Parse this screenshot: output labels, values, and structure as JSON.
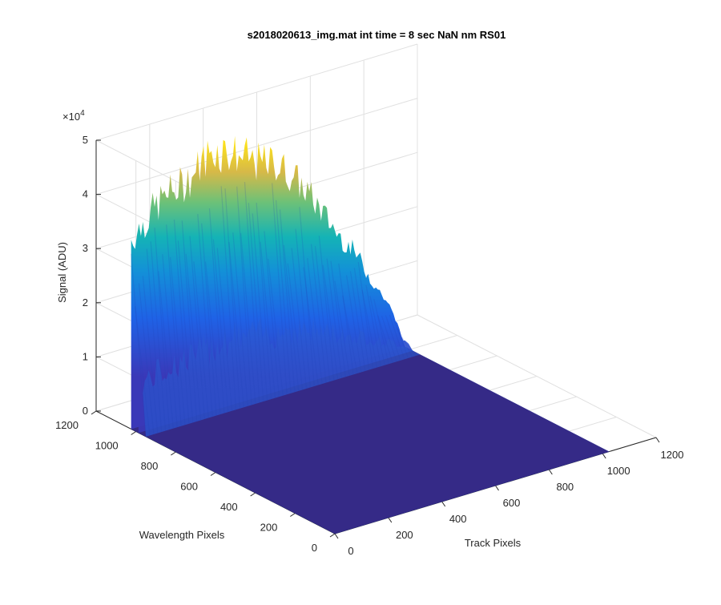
{
  "chart_data": {
    "type": "surface",
    "title": "s2018020613_img.mat int time = 8 sec  NaN nm RS01",
    "xlabel": "Track Pixels",
    "ylabel": "Wavelength Pixels",
    "zlabel": "Signal (ADU)",
    "xlim": [
      0,
      1200
    ],
    "ylim": [
      0,
      1200
    ],
    "zlim": [
      0,
      50000
    ],
    "x_ticks": [
      "0",
      "200",
      "400",
      "600",
      "800",
      "1000",
      "1200"
    ],
    "y_ticks": [
      "0",
      "200",
      "400",
      "600",
      "800",
      "1000",
      "1200"
    ],
    "z_ticks": [
      "0",
      "1",
      "2",
      "3",
      "4",
      "5"
    ],
    "z_exponent_base": "×10",
    "z_exponent_power": "4",
    "grid": true,
    "colormap": "parula",
    "data_extent": {
      "x_range": [
        0,
        1024
      ],
      "y_range": [
        0,
        1024
      ],
      "signal_x_range": [
        0,
        1024
      ],
      "signal_y_range": [
        950,
        1024
      ],
      "baseline_signal": 0,
      "peak_signal": 47000
    },
    "profile_along_track": {
      "x": [
        0,
        60,
        120,
        180,
        240,
        300,
        360,
        420,
        480,
        540,
        600,
        660,
        720,
        780,
        840,
        900,
        960,
        1000,
        1024
      ],
      "signal": [
        35000,
        38000,
        41000,
        42000,
        44000,
        47000,
        46000,
        44000,
        42000,
        41000,
        38000,
        34000,
        29000,
        24000,
        20000,
        14000,
        9000,
        4000,
        0
      ]
    }
  }
}
